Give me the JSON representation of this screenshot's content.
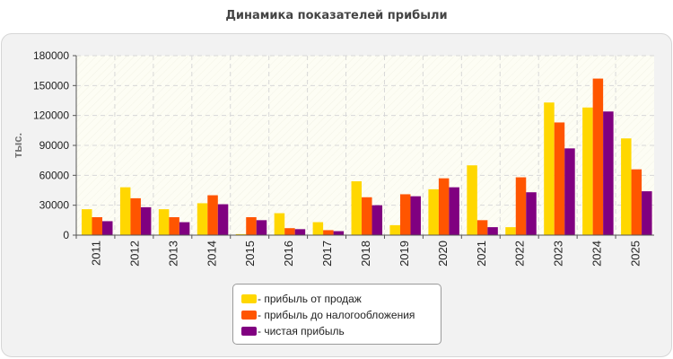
{
  "title": "Динамика показателей прибыли",
  "colors": {
    "sales": "#FFD700",
    "pretax": "#FF5500",
    "net": "#800080",
    "plot_bg": "#FDFDF4",
    "grid": "#D8D8D8"
  },
  "chart_data": {
    "type": "bar",
    "title": "Динамика показателей прибыли",
    "xlabel": "",
    "ylabel": "тыс.",
    "ylim": [
      0,
      180000
    ],
    "yticks": [
      "0",
      "30000",
      "60000",
      "90000",
      "120000",
      "150000",
      "180000"
    ],
    "grid": true,
    "legend_position": "bottom-center",
    "categories": [
      "2011",
      "2012",
      "2013",
      "2014",
      "2015",
      "2016",
      "2017",
      "2018",
      "2019",
      "2020",
      "2021",
      "2022",
      "2023",
      "2024",
      "2025"
    ],
    "series": [
      {
        "name": "- прибыль от продаж",
        "values": [
          26000,
          48000,
          26000,
          32000,
          1000,
          22000,
          13000,
          54000,
          10000,
          46000,
          70000,
          8000,
          133000,
          128000,
          97000
        ]
      },
      {
        "name": "- прибыль до налогообложения",
        "values": [
          18000,
          37000,
          18000,
          40000,
          18000,
          7000,
          5000,
          38000,
          41000,
          57000,
          15000,
          58000,
          113000,
          157000,
          66000
        ]
      },
      {
        "name": "- чистая прибыль",
        "values": [
          14000,
          28000,
          13000,
          31000,
          15000,
          6000,
          4000,
          30000,
          39000,
          48000,
          8000,
          43000,
          87000,
          124000,
          44000
        ]
      }
    ]
  }
}
